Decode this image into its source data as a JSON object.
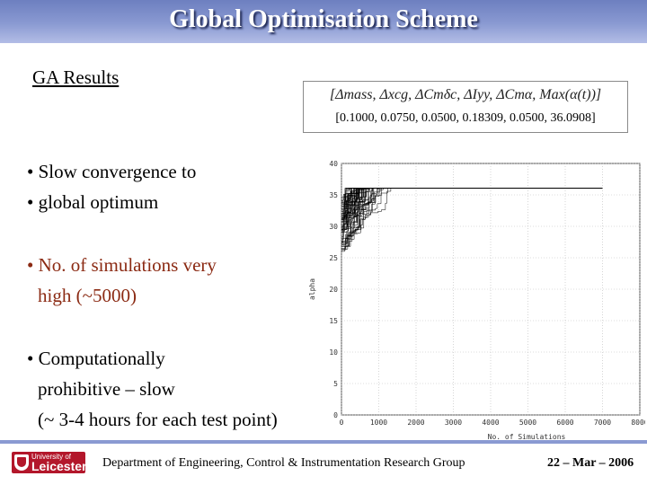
{
  "title": "Global Optimisation Scheme",
  "subtitle": "GA Results",
  "formula": {
    "expression": "[Δmass, Δxcg, ΔCmδc, ΔIyy, ΔCmα, Max(α(t))]",
    "values": "[0.1000,  0.0750,  0.0500,  0.18309,  0.0500,  36.0908]"
  },
  "bullets": [
    {
      "lines": [
        "• Slow convergence to",
        "• global optimum"
      ],
      "color": "#000000"
    },
    {
      "lines": [
        "• No. of simulations very",
        "  high (~5000)"
      ],
      "color": "#8b2a13"
    },
    {
      "lines": [
        "• Computationally",
        "  prohibitive  – slow",
        "  (~ 3-4 hours for each test point)"
      ],
      "color": "#000000"
    }
  ],
  "chart_data": {
    "type": "line",
    "xlabel": "No. of Simulations",
    "ylabel": "alpha",
    "xlim": [
      0,
      8000
    ],
    "ylim": [
      0,
      40
    ],
    "xticks": [
      "0",
      "1000",
      "2000",
      "3000",
      "4000",
      "5000",
      "6000",
      "7000",
      "8000"
    ],
    "yticks": [
      "0",
      "5",
      "10",
      "15",
      "20",
      "25",
      "30",
      "35",
      "40"
    ],
    "grid": true,
    "convergence_value": 36.0908,
    "series_count": 60,
    "end_x": 7000
  },
  "footer": {
    "logo_small": "University of",
    "logo_big": "Leicester",
    "department": "Department of Engineering, Control & Instrumentation Research Group",
    "date": "22 – Mar – 2006"
  }
}
